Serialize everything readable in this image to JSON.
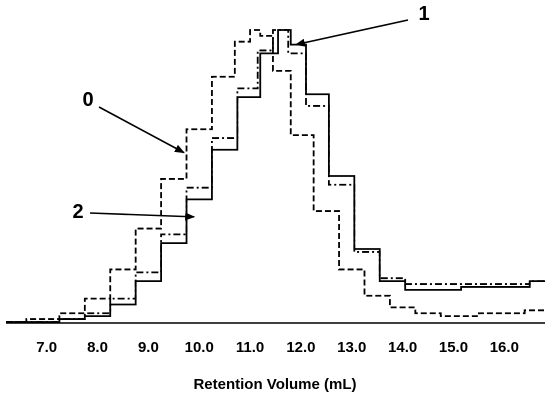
{
  "chart_data": {
    "type": "line",
    "title": "",
    "xlabel": "Retention Volume (mL)",
    "ylabel": "",
    "xlim": [
      6.2,
      16.8
    ],
    "ylim": [
      0,
      1
    ],
    "x_ticks": [
      "7.0",
      "8.0",
      "9.0",
      "10.0",
      "11.0",
      "12.0",
      "13.0",
      "14.0",
      "15.0",
      "16.0"
    ],
    "x_tick_values": [
      7,
      8,
      9,
      10,
      11,
      12,
      13,
      14,
      15,
      16
    ],
    "y_axis_visible": false,
    "grid": false,
    "legend": "none",
    "series": [
      {
        "name": "0",
        "style": "dashed",
        "x": [
          6.2,
          7.0,
          7.5,
          8.0,
          8.5,
          9.0,
          9.5,
          10.0,
          10.5,
          10.9,
          11.1,
          11.3,
          11.6,
          12.0,
          12.5,
          13.0,
          13.5,
          14.0,
          14.5,
          15.0,
          16.0,
          16.8
        ],
        "y": [
          0.0,
          0.01,
          0.03,
          0.08,
          0.18,
          0.32,
          0.49,
          0.66,
          0.84,
          0.96,
          1.0,
          0.98,
          0.86,
          0.64,
          0.38,
          0.18,
          0.09,
          0.05,
          0.03,
          0.02,
          0.03,
          0.04
        ]
      },
      {
        "name": "1",
        "style": "solid",
        "x": [
          6.2,
          7.0,
          7.5,
          8.0,
          8.5,
          9.0,
          9.5,
          10.0,
          10.5,
          11.0,
          11.4,
          11.7,
          11.9,
          12.3,
          12.8,
          13.3,
          13.8,
          14.3,
          14.8,
          15.5,
          16.2,
          16.8
        ],
        "y": [
          0.0,
          0.0,
          0.01,
          0.02,
          0.06,
          0.14,
          0.27,
          0.42,
          0.59,
          0.77,
          0.92,
          1.0,
          0.95,
          0.78,
          0.5,
          0.25,
          0.14,
          0.11,
          0.11,
          0.12,
          0.12,
          0.14
        ]
      },
      {
        "name": "2",
        "style": "dash-dot",
        "x": [
          6.2,
          7.0,
          7.5,
          8.0,
          8.5,
          9.0,
          9.5,
          10.0,
          10.5,
          11.0,
          11.3,
          11.6,
          11.9,
          12.3,
          12.8,
          13.3,
          13.8,
          14.3,
          14.8,
          15.5,
          16.2,
          16.8
        ],
        "y": [
          0.0,
          0.0,
          0.01,
          0.03,
          0.08,
          0.17,
          0.3,
          0.46,
          0.63,
          0.8,
          0.93,
          1.0,
          0.92,
          0.74,
          0.47,
          0.24,
          0.15,
          0.13,
          0.13,
          0.13,
          0.13,
          0.14
        ]
      }
    ],
    "annotations": [
      {
        "text": "0",
        "target_series": "0",
        "target_x": 9.7,
        "target_y": 0.58
      },
      {
        "text": "1",
        "target_series": "1",
        "target_x": 11.9,
        "target_y": 0.95
      },
      {
        "text": "2",
        "target_series": "2",
        "target_x": 9.9,
        "target_y": 0.36
      }
    ]
  }
}
